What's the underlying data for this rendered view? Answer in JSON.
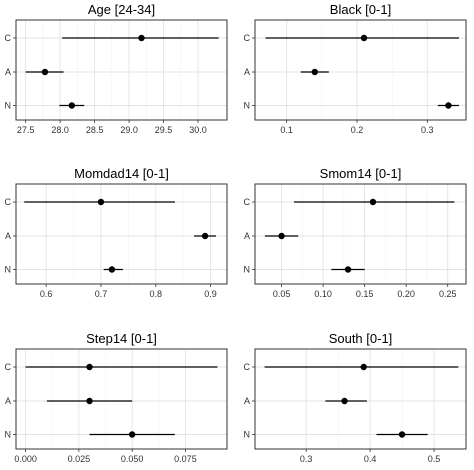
{
  "chart_data": [
    {
      "type": "scatter",
      "title": "Age [24-34]",
      "categories": [
        "C",
        "A",
        "N"
      ],
      "x_ticks": [
        27.5,
        28.0,
        28.5,
        29.0,
        29.5,
        30.0
      ],
      "x_tick_labels": [
        "27.5",
        "28.0",
        "28.5",
        "29.0",
        "29.5",
        "30.0"
      ],
      "xlim": [
        27.36,
        30.42
      ],
      "series": [
        {
          "category": "C",
          "value": 29.18,
          "low": 28.03,
          "high": 30.3
        },
        {
          "category": "A",
          "value": 27.78,
          "low": 27.5,
          "high": 28.05
        },
        {
          "category": "N",
          "value": 28.17,
          "low": 27.99,
          "high": 28.35
        }
      ]
    },
    {
      "type": "scatter",
      "title": "Black [0-1]",
      "categories": [
        "C",
        "A",
        "N"
      ],
      "x_ticks": [
        0.1,
        0.2,
        0.3
      ],
      "x_tick_labels": [
        "0.1",
        "0.2",
        "0.3"
      ],
      "xlim": [
        0.055,
        0.355
      ],
      "series": [
        {
          "category": "C",
          "value": 0.21,
          "low": 0.07,
          "high": 0.345
        },
        {
          "category": "A",
          "value": 0.14,
          "low": 0.12,
          "high": 0.16
        },
        {
          "category": "N",
          "value": 0.33,
          "low": 0.315,
          "high": 0.345
        }
      ]
    },
    {
      "type": "scatter",
      "title": "Momdad14  [0-1]",
      "categories": [
        "C",
        "A",
        "N"
      ],
      "x_ticks": [
        0.6,
        0.7,
        0.8,
        0.9
      ],
      "x_tick_labels": [
        "0.6",
        "0.7",
        "0.8",
        "0.9"
      ],
      "xlim": [
        0.545,
        0.93
      ],
      "series": [
        {
          "category": "C",
          "value": 0.7,
          "low": 0.56,
          "high": 0.835
        },
        {
          "category": "A",
          "value": 0.89,
          "low": 0.87,
          "high": 0.91
        },
        {
          "category": "N",
          "value": 0.72,
          "low": 0.705,
          "high": 0.74
        }
      ]
    },
    {
      "type": "scatter",
      "title": "Smom14  [0-1]",
      "categories": [
        "C",
        "A",
        "N"
      ],
      "x_ticks": [
        0.05,
        0.1,
        0.15,
        0.2,
        0.25
      ],
      "x_tick_labels": [
        "0.05",
        "0.10",
        "0.15",
        "0.20",
        "0.25"
      ],
      "xlim": [
        0.018,
        0.272
      ],
      "series": [
        {
          "category": "C",
          "value": 0.16,
          "low": 0.065,
          "high": 0.258
        },
        {
          "category": "A",
          "value": 0.05,
          "low": 0.03,
          "high": 0.07
        },
        {
          "category": "N",
          "value": 0.13,
          "low": 0.11,
          "high": 0.15
        }
      ]
    },
    {
      "type": "scatter",
      "title": "Step14  [0-1]",
      "categories": [
        "C",
        "A",
        "N"
      ],
      "x_ticks": [
        0.0,
        0.025,
        0.05,
        0.075
      ],
      "x_tick_labels": [
        "0.000",
        "0.025",
        "0.050",
        "0.075"
      ],
      "xlim": [
        -0.0045,
        0.0945
      ],
      "series": [
        {
          "category": "C",
          "value": 0.03,
          "low": 0.0,
          "high": 0.09
        },
        {
          "category": "A",
          "value": 0.03,
          "low": 0.01,
          "high": 0.05
        },
        {
          "category": "N",
          "value": 0.05,
          "low": 0.03,
          "high": 0.07
        }
      ]
    },
    {
      "type": "scatter",
      "title": "South [0-1]",
      "categories": [
        "C",
        "A",
        "N"
      ],
      "x_ticks": [
        0.3,
        0.4,
        0.5
      ],
      "x_tick_labels": [
        "0.3",
        "0.4",
        "0.5"
      ],
      "xlim": [
        0.22,
        0.55
      ],
      "series": [
        {
          "category": "C",
          "value": 0.39,
          "low": 0.235,
          "high": 0.538
        },
        {
          "category": "A",
          "value": 0.36,
          "low": 0.33,
          "high": 0.395
        },
        {
          "category": "N",
          "value": 0.45,
          "low": 0.41,
          "high": 0.49
        }
      ]
    }
  ]
}
